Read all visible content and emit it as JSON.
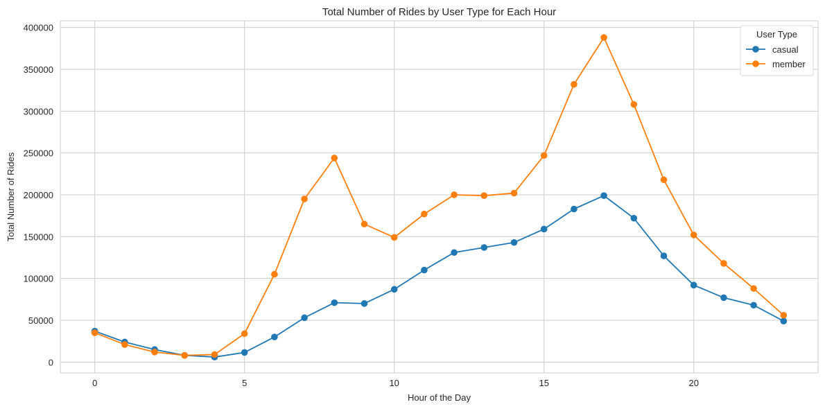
{
  "chart_data": {
    "type": "line",
    "title": "Total Number of Rides by User Type for Each Hour",
    "xlabel": "Hour of the Day",
    "ylabel": "Total Number of Rides",
    "x": [
      0,
      1,
      2,
      3,
      4,
      5,
      6,
      7,
      8,
      9,
      10,
      11,
      12,
      13,
      14,
      15,
      16,
      17,
      18,
      19,
      20,
      21,
      22,
      23
    ],
    "xlim": [
      -1.15,
      24.15
    ],
    "ylim": [
      -13000,
      408000
    ],
    "x_ticks": [
      0,
      5,
      10,
      15,
      20
    ],
    "y_ticks": [
      0,
      50000,
      100000,
      150000,
      200000,
      250000,
      300000,
      350000,
      400000
    ],
    "grid": true,
    "legend": {
      "title": "User Type",
      "placement": "top-right"
    },
    "series": [
      {
        "name": "casual",
        "color": "#1f77b4",
        "marker": "circle",
        "values": [
          37000,
          24000,
          15000,
          8000,
          6000,
          11500,
          30000,
          53000,
          71000,
          70000,
          87000,
          110000,
          131000,
          137000,
          143000,
          159000,
          183000,
          199000,
          172000,
          127000,
          92000,
          77000,
          68000,
          49000
        ]
      },
      {
        "name": "member",
        "color": "#ff7f0e",
        "marker": "circle",
        "values": [
          35000,
          21000,
          12000,
          8000,
          9000,
          34000,
          105000,
          195000,
          244000,
          165000,
          149000,
          177000,
          200000,
          199000,
          202000,
          247000,
          332000,
          388000,
          308000,
          218000,
          152000,
          118000,
          88000,
          56000
        ]
      }
    ]
  }
}
